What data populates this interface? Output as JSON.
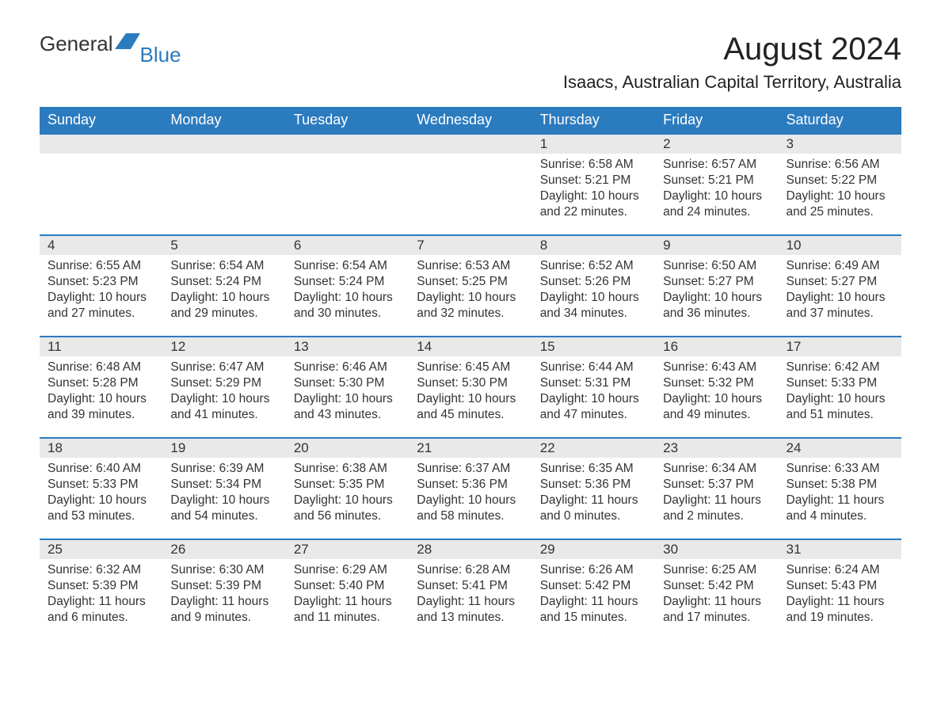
{
  "logo": {
    "text1": "General",
    "text2": "Blue"
  },
  "title": "August 2024",
  "location": "Isaacs, Australian Capital Territory, Australia",
  "colors": {
    "header_bg": "#2b7bbf",
    "header_text": "#ffffff",
    "daynum_bg": "#e9e9e9",
    "text": "#333333",
    "page_bg": "#ffffff",
    "logo_blue": "#2b7bbf"
  },
  "typography": {
    "title_fontsize": 40,
    "location_fontsize": 22,
    "dayheader_fontsize": 18,
    "daynum_fontsize": 17,
    "body_fontsize": 15.5,
    "logo_fontsize": 26
  },
  "day_headers": [
    "Sunday",
    "Monday",
    "Tuesday",
    "Wednesday",
    "Thursday",
    "Friday",
    "Saturday"
  ],
  "weeks": [
    [
      {
        "empty": true
      },
      {
        "empty": true
      },
      {
        "empty": true
      },
      {
        "empty": true
      },
      {
        "num": "1",
        "sunrise": "Sunrise: 6:58 AM",
        "sunset": "Sunset: 5:21 PM",
        "day1": "Daylight: 10 hours",
        "day2": "and 22 minutes."
      },
      {
        "num": "2",
        "sunrise": "Sunrise: 6:57 AM",
        "sunset": "Sunset: 5:21 PM",
        "day1": "Daylight: 10 hours",
        "day2": "and 24 minutes."
      },
      {
        "num": "3",
        "sunrise": "Sunrise: 6:56 AM",
        "sunset": "Sunset: 5:22 PM",
        "day1": "Daylight: 10 hours",
        "day2": "and 25 minutes."
      }
    ],
    [
      {
        "num": "4",
        "sunrise": "Sunrise: 6:55 AM",
        "sunset": "Sunset: 5:23 PM",
        "day1": "Daylight: 10 hours",
        "day2": "and 27 minutes."
      },
      {
        "num": "5",
        "sunrise": "Sunrise: 6:54 AM",
        "sunset": "Sunset: 5:24 PM",
        "day1": "Daylight: 10 hours",
        "day2": "and 29 minutes."
      },
      {
        "num": "6",
        "sunrise": "Sunrise: 6:54 AM",
        "sunset": "Sunset: 5:24 PM",
        "day1": "Daylight: 10 hours",
        "day2": "and 30 minutes."
      },
      {
        "num": "7",
        "sunrise": "Sunrise: 6:53 AM",
        "sunset": "Sunset: 5:25 PM",
        "day1": "Daylight: 10 hours",
        "day2": "and 32 minutes."
      },
      {
        "num": "8",
        "sunrise": "Sunrise: 6:52 AM",
        "sunset": "Sunset: 5:26 PM",
        "day1": "Daylight: 10 hours",
        "day2": "and 34 minutes."
      },
      {
        "num": "9",
        "sunrise": "Sunrise: 6:50 AM",
        "sunset": "Sunset: 5:27 PM",
        "day1": "Daylight: 10 hours",
        "day2": "and 36 minutes."
      },
      {
        "num": "10",
        "sunrise": "Sunrise: 6:49 AM",
        "sunset": "Sunset: 5:27 PM",
        "day1": "Daylight: 10 hours",
        "day2": "and 37 minutes."
      }
    ],
    [
      {
        "num": "11",
        "sunrise": "Sunrise: 6:48 AM",
        "sunset": "Sunset: 5:28 PM",
        "day1": "Daylight: 10 hours",
        "day2": "and 39 minutes."
      },
      {
        "num": "12",
        "sunrise": "Sunrise: 6:47 AM",
        "sunset": "Sunset: 5:29 PM",
        "day1": "Daylight: 10 hours",
        "day2": "and 41 minutes."
      },
      {
        "num": "13",
        "sunrise": "Sunrise: 6:46 AM",
        "sunset": "Sunset: 5:30 PM",
        "day1": "Daylight: 10 hours",
        "day2": "and 43 minutes."
      },
      {
        "num": "14",
        "sunrise": "Sunrise: 6:45 AM",
        "sunset": "Sunset: 5:30 PM",
        "day1": "Daylight: 10 hours",
        "day2": "and 45 minutes."
      },
      {
        "num": "15",
        "sunrise": "Sunrise: 6:44 AM",
        "sunset": "Sunset: 5:31 PM",
        "day1": "Daylight: 10 hours",
        "day2": "and 47 minutes."
      },
      {
        "num": "16",
        "sunrise": "Sunrise: 6:43 AM",
        "sunset": "Sunset: 5:32 PM",
        "day1": "Daylight: 10 hours",
        "day2": "and 49 minutes."
      },
      {
        "num": "17",
        "sunrise": "Sunrise: 6:42 AM",
        "sunset": "Sunset: 5:33 PM",
        "day1": "Daylight: 10 hours",
        "day2": "and 51 minutes."
      }
    ],
    [
      {
        "num": "18",
        "sunrise": "Sunrise: 6:40 AM",
        "sunset": "Sunset: 5:33 PM",
        "day1": "Daylight: 10 hours",
        "day2": "and 53 minutes."
      },
      {
        "num": "19",
        "sunrise": "Sunrise: 6:39 AM",
        "sunset": "Sunset: 5:34 PM",
        "day1": "Daylight: 10 hours",
        "day2": "and 54 minutes."
      },
      {
        "num": "20",
        "sunrise": "Sunrise: 6:38 AM",
        "sunset": "Sunset: 5:35 PM",
        "day1": "Daylight: 10 hours",
        "day2": "and 56 minutes."
      },
      {
        "num": "21",
        "sunrise": "Sunrise: 6:37 AM",
        "sunset": "Sunset: 5:36 PM",
        "day1": "Daylight: 10 hours",
        "day2": "and 58 minutes."
      },
      {
        "num": "22",
        "sunrise": "Sunrise: 6:35 AM",
        "sunset": "Sunset: 5:36 PM",
        "day1": "Daylight: 11 hours",
        "day2": "and 0 minutes."
      },
      {
        "num": "23",
        "sunrise": "Sunrise: 6:34 AM",
        "sunset": "Sunset: 5:37 PM",
        "day1": "Daylight: 11 hours",
        "day2": "and 2 minutes."
      },
      {
        "num": "24",
        "sunrise": "Sunrise: 6:33 AM",
        "sunset": "Sunset: 5:38 PM",
        "day1": "Daylight: 11 hours",
        "day2": "and 4 minutes."
      }
    ],
    [
      {
        "num": "25",
        "sunrise": "Sunrise: 6:32 AM",
        "sunset": "Sunset: 5:39 PM",
        "day1": "Daylight: 11 hours",
        "day2": "and 6 minutes."
      },
      {
        "num": "26",
        "sunrise": "Sunrise: 6:30 AM",
        "sunset": "Sunset: 5:39 PM",
        "day1": "Daylight: 11 hours",
        "day2": "and 9 minutes."
      },
      {
        "num": "27",
        "sunrise": "Sunrise: 6:29 AM",
        "sunset": "Sunset: 5:40 PM",
        "day1": "Daylight: 11 hours",
        "day2": "and 11 minutes."
      },
      {
        "num": "28",
        "sunrise": "Sunrise: 6:28 AM",
        "sunset": "Sunset: 5:41 PM",
        "day1": "Daylight: 11 hours",
        "day2": "and 13 minutes."
      },
      {
        "num": "29",
        "sunrise": "Sunrise: 6:26 AM",
        "sunset": "Sunset: 5:42 PM",
        "day1": "Daylight: 11 hours",
        "day2": "and 15 minutes."
      },
      {
        "num": "30",
        "sunrise": "Sunrise: 6:25 AM",
        "sunset": "Sunset: 5:42 PM",
        "day1": "Daylight: 11 hours",
        "day2": "and 17 minutes."
      },
      {
        "num": "31",
        "sunrise": "Sunrise: 6:24 AM",
        "sunset": "Sunset: 5:43 PM",
        "day1": "Daylight: 11 hours",
        "day2": "and 19 minutes."
      }
    ]
  ]
}
